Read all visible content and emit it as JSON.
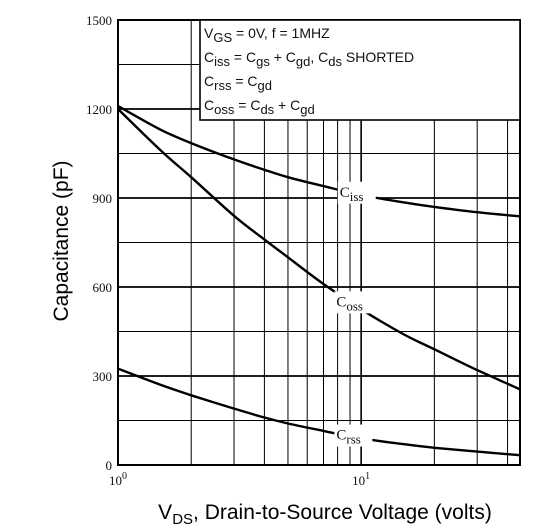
{
  "chart_data": {
    "type": "line",
    "xlabel": {
      "main": "V",
      "sub": "DS",
      "rest": ", Drain-to-Source Voltage (volts)"
    },
    "ylabel": "Capacitance (pF)",
    "x_scale": "log",
    "xlim": [
      1,
      45
    ],
    "ylim": [
      0,
      1500
    ],
    "y_ticks": [
      0,
      300,
      600,
      900,
      1200,
      1500
    ],
    "x_ticks": [
      {
        "value": 1,
        "base": "10",
        "exp": "0"
      },
      {
        "value": 10,
        "base": "10",
        "exp": "1"
      }
    ],
    "grid": true,
    "legend_box": [
      [
        {
          "t": "V"
        },
        {
          "t": "GS",
          "sub": true
        },
        {
          "t": " = 0V,  f = 1MHZ"
        }
      ],
      [
        {
          "t": "C"
        },
        {
          "t": "iss",
          "sub": true
        },
        {
          "t": " = C"
        },
        {
          "t": "gs",
          "sub": true
        },
        {
          "t": " + C"
        },
        {
          "t": "gd",
          "sub": true
        },
        {
          "t": ",  C"
        },
        {
          "t": "ds",
          "sub": true
        },
        {
          "t": "  SHORTED"
        }
      ],
      [
        {
          "t": "C"
        },
        {
          "t": "rss",
          "sub": true
        },
        {
          "t": " = C"
        },
        {
          "t": "gd",
          "sub": true
        }
      ],
      [
        {
          "t": "C"
        },
        {
          "t": "oss",
          "sub": true
        },
        {
          "t": " = C"
        },
        {
          "t": "ds",
          "sub": true
        },
        {
          "t": " + C"
        },
        {
          "t": "gd",
          "sub": true
        }
      ]
    ],
    "series": [
      {
        "name": "Ciss",
        "label_main": "C",
        "label_sub": "iss",
        "label_at": 9.5,
        "x": [
          1,
          1.5,
          2,
          3,
          4,
          5,
          7,
          10,
          15,
          20,
          30,
          45
        ],
        "y": [
          1210,
          1130,
          1085,
          1030,
          995,
          970,
          940,
          910,
          885,
          870,
          852,
          838
        ]
      },
      {
        "name": "Coss",
        "label_main": "C",
        "label_sub": "oss",
        "label_at": 9.2,
        "x": [
          1,
          1.5,
          2,
          3,
          4,
          5,
          7,
          10,
          15,
          20,
          30,
          45
        ],
        "y": [
          1200,
          1060,
          970,
          840,
          760,
          700,
          610,
          525,
          440,
          390,
          320,
          255
        ]
      },
      {
        "name": "Crss",
        "label_main": "C",
        "label_sub": "rss",
        "label_at": 9.2,
        "x": [
          1,
          1.5,
          2,
          3,
          4,
          5,
          7,
          10,
          15,
          20,
          30,
          45
        ],
        "y": [
          325,
          270,
          235,
          190,
          160,
          140,
          115,
          90,
          70,
          58,
          45,
          33
        ]
      }
    ]
  }
}
